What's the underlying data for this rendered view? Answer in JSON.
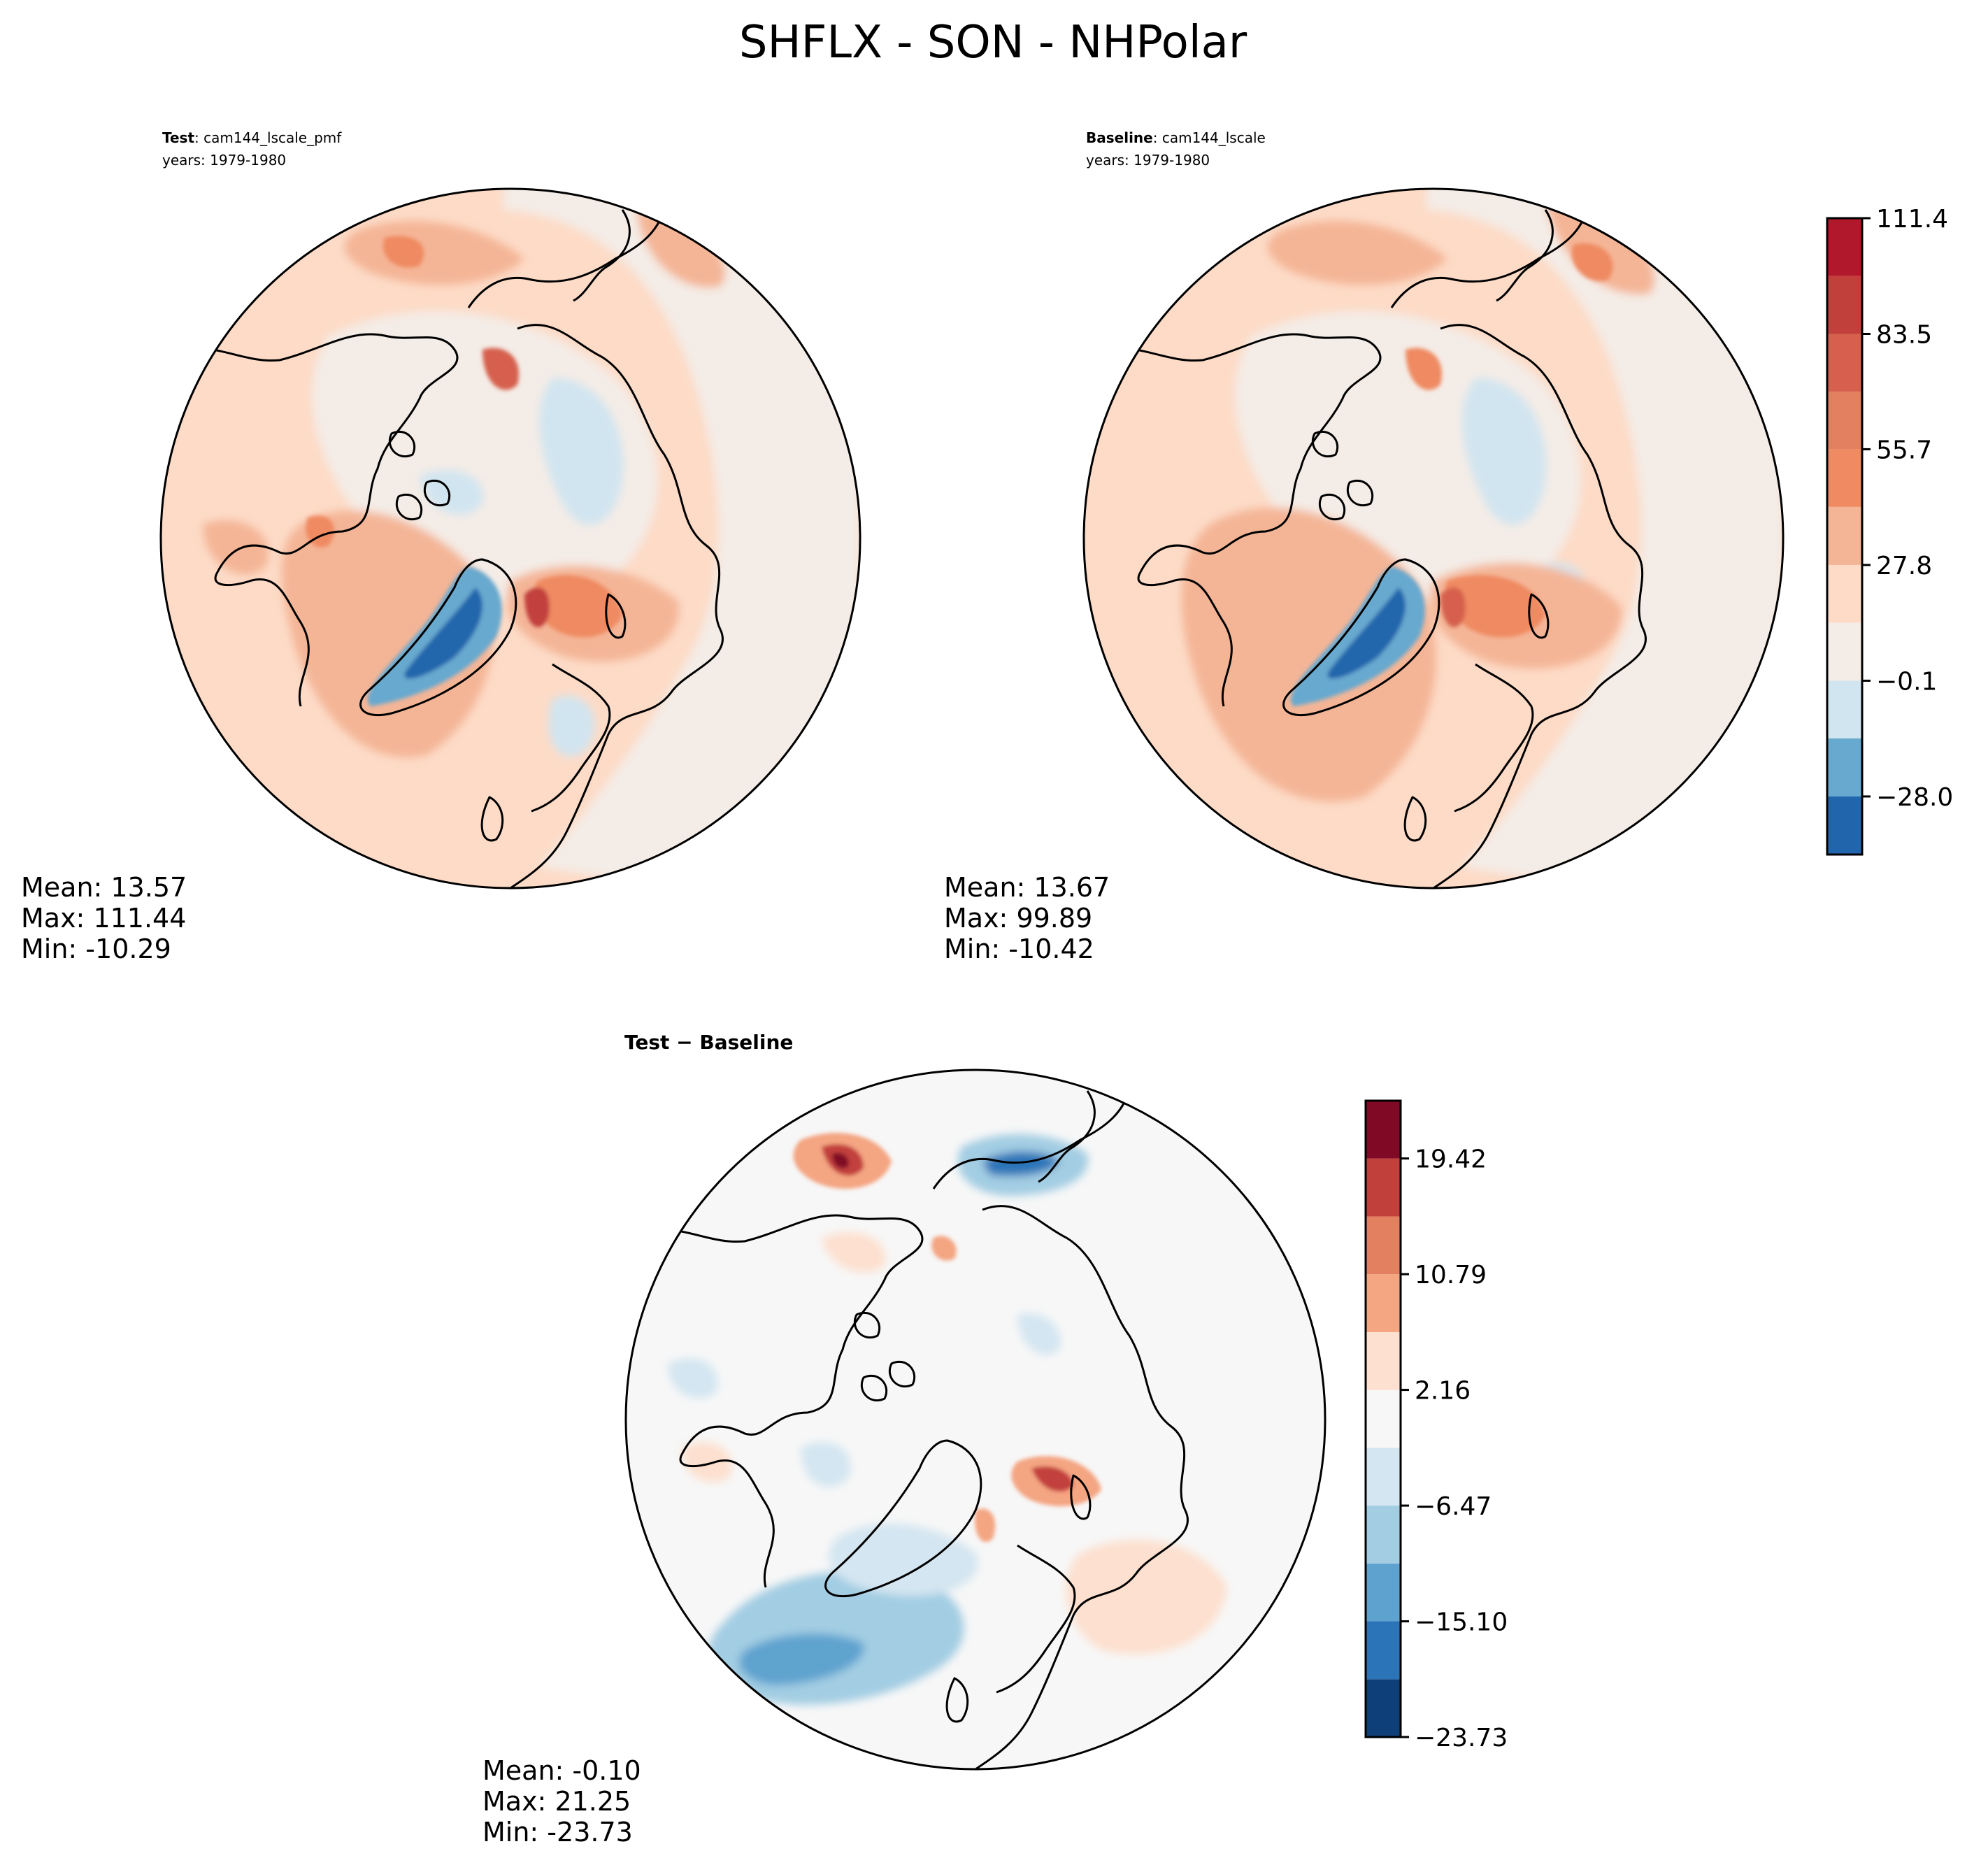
{
  "figure": {
    "title": "SHFLX - SON - NHPolar"
  },
  "palettes": {
    "diverging": [
      "#0f3f78",
      "#2166ac",
      "#4393c3",
      "#92c5de",
      "#d1e5f0",
      "#f7f7f7",
      "#f4ece6",
      "#fddbc7",
      "#f4a582",
      "#e3805f",
      "#d6604d",
      "#c2403c",
      "#b2182b",
      "#800a26"
    ],
    "land_line": "#000000"
  },
  "chart_data": [
    {
      "type": "heatmap",
      "projection": "north-polar-stereographic",
      "role": "test",
      "label_bold": "Test",
      "label_rest": ": cam144_lscale_pmf",
      "years": "years: 1979-1980",
      "stats": {
        "mean": "Mean: 13.57",
        "max": "Max: 111.44",
        "min": "Min: -10.29"
      },
      "range": [
        -42,
        111.4
      ],
      "colorbar": null
    },
    {
      "type": "heatmap",
      "projection": "north-polar-stereographic",
      "role": "baseline",
      "label_bold": "Baseline",
      "label_rest": ": cam144_lscale",
      "years": "years: 1979-1980",
      "stats": {
        "mean": "Mean: 13.67",
        "max": "Max: 99.89",
        "min": "Min: -10.42"
      },
      "range": [
        -42,
        111.4
      ],
      "colorbar": {
        "levels": [
          -42,
          -28.0,
          -14.0,
          -0.1,
          13.9,
          27.8,
          41.8,
          55.7,
          69.6,
          83.5,
          97.5,
          111.4
        ],
        "colors": [
          "#2166ac",
          "#67a9cf",
          "#d1e5f0",
          "#f4ece6",
          "#fddbc7",
          "#f4b596",
          "#ef8a62",
          "#e3805f",
          "#d6604d",
          "#c2403c",
          "#b2182b",
          "#800a26"
        ],
        "ticks": [
          111.4,
          83.5,
          55.7,
          27.8,
          -0.1,
          -28.0
        ],
        "tick_labels": [
          "111.4",
          "83.5",
          "55.7",
          "27.8",
          "−0.1",
          "−28.0"
        ]
      }
    },
    {
      "type": "heatmap",
      "projection": "north-polar-stereographic",
      "role": "difference",
      "label_bold": "Test − Baseline",
      "stats": {
        "mean": "Mean: -0.10",
        "max": "Max: 21.25",
        "min": "Min: -23.73"
      },
      "range": [
        -23.73,
        23.73
      ],
      "colorbar": {
        "levels": [
          -23.73,
          -19.42,
          -15.1,
          -10.79,
          -6.47,
          -2.16,
          2.16,
          6.47,
          10.79,
          15.1,
          19.42,
          23.73
        ],
        "colors": [
          "#0f3f78",
          "#2c74b8",
          "#5ea3cf",
          "#a3cde3",
          "#d4e6f1",
          "#f7f7f7",
          "#fde0cf",
          "#f4a582",
          "#e3805f",
          "#c2403c",
          "#800a26"
        ],
        "ticks": [
          19.42,
          10.79,
          2.16,
          -6.47,
          -15.1,
          -23.73
        ],
        "tick_labels": [
          "19.42",
          "10.79",
          "2.16",
          "−6.47",
          "−15.10",
          "−23.73"
        ]
      }
    }
  ]
}
